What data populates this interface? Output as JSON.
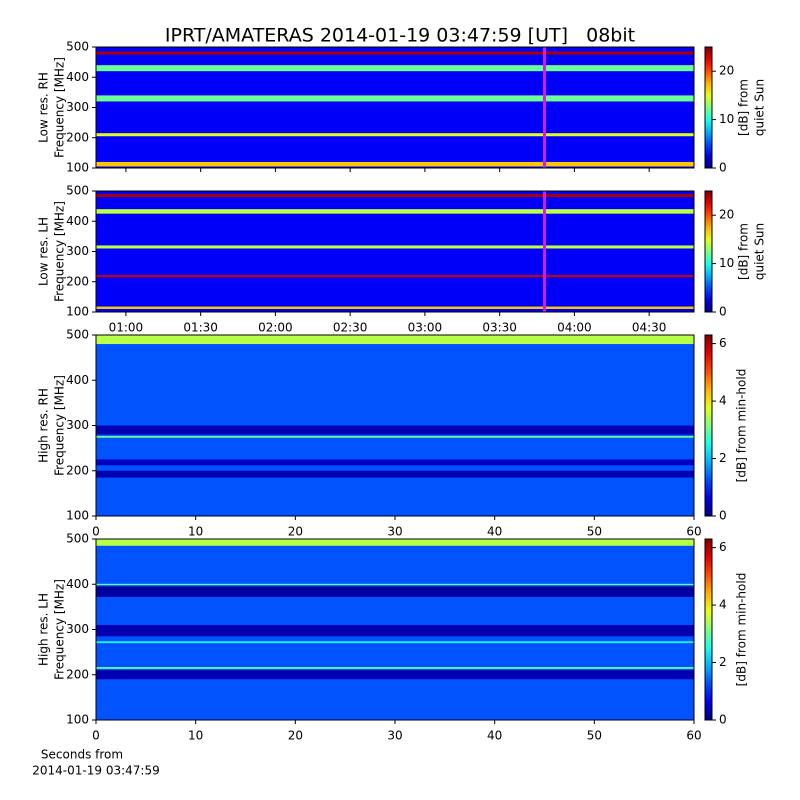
{
  "title": "IPRT/AMATERAS 2014-01-19 03:47:59 [UT]   08bit",
  "chart_data": [
    {
      "type": "spectrogram",
      "ylabel": [
        "Low res. RH",
        "Frequency [MHz]"
      ],
      "ylim": [
        100,
        500
      ],
      "yticks": [
        100,
        200,
        300,
        400,
        500
      ],
      "xlim": [
        48,
        288
      ],
      "xticks": [
        60,
        90,
        120,
        150,
        180,
        210,
        240,
        270
      ],
      "colormap": "jet",
      "clim": [
        0,
        25
      ],
      "cticks": [
        0,
        10,
        20
      ],
      "clabel": [
        "[dB] from",
        "quiet Sun"
      ],
      "background": 3,
      "bands": [
        {
          "freq": [
            475,
            485
          ],
          "value": 24
        },
        {
          "freq": [
            420,
            440
          ],
          "value": 12
        },
        {
          "freq": [
            320,
            340
          ],
          "value": 12
        },
        {
          "freq": [
            205,
            215
          ],
          "value": 15
        },
        {
          "freq": [
            105,
            120
          ],
          "value": 17
        }
      ],
      "marker": 228,
      "marker_color": "#cc22dd"
    },
    {
      "type": "spectrogram",
      "ylabel": [
        "Low res. LH",
        "Frequency [MHz]"
      ],
      "ylim": [
        100,
        500
      ],
      "yticks": [
        100,
        200,
        300,
        400,
        500
      ],
      "xlim": [
        48,
        288
      ],
      "xticks": [
        {
          "value": 60,
          "label": "01:00"
        },
        {
          "value": 90,
          "label": "01:30"
        },
        {
          "value": 120,
          "label": "02:00"
        },
        {
          "value": 150,
          "label": "02:30"
        },
        {
          "value": 180,
          "label": "03:00"
        },
        {
          "value": 210,
          "label": "03:30"
        },
        {
          "value": 240,
          "label": "04:00"
        },
        {
          "value": 270,
          "label": "04:30"
        }
      ],
      "colormap": "jet",
      "clim": [
        0,
        25
      ],
      "cticks": [
        0,
        10,
        20
      ],
      "clabel": [
        "[dB] from",
        "quiet Sun"
      ],
      "background": 3,
      "bands": [
        {
          "freq": [
            480,
            490
          ],
          "value": 24
        },
        {
          "freq": [
            425,
            440
          ],
          "value": 14
        },
        {
          "freq": [
            310,
            320
          ],
          "value": 14
        },
        {
          "freq": [
            215,
            222
          ],
          "value": 23
        },
        {
          "freq": [
            110,
            118
          ],
          "value": 17
        }
      ],
      "marker": 228,
      "marker_color": "#cc22dd"
    },
    {
      "type": "spectrogram",
      "ylabel": [
        "High res. RH",
        "Frequency [MHz]"
      ],
      "ylim": [
        100,
        500
      ],
      "yticks": [
        100,
        200,
        300,
        400,
        500
      ],
      "xlim": [
        0,
        60
      ],
      "xticks": [
        0,
        10,
        20,
        30,
        40,
        50,
        60
      ],
      "colormap": "jet",
      "clim": [
        0,
        6.3
      ],
      "cticks": [
        0,
        2,
        4,
        6
      ],
      "clabel": [
        "[dB] from min-hold"
      ],
      "background": 1.3,
      "bands": [
        {
          "freq": [
            480,
            500
          ],
          "value": 3.5
        },
        {
          "freq": [
            280,
            300
          ],
          "value": 0.3
        },
        {
          "freq": [
            273,
            277
          ],
          "value": 3
        },
        {
          "freq": [
            212,
            225
          ],
          "value": 0.4
        },
        {
          "freq": [
            185,
            200
          ],
          "value": 0.3
        }
      ]
    },
    {
      "type": "spectrogram",
      "ylabel": [
        "High res. LH",
        "Frequency [MHz]"
      ],
      "ylim": [
        100,
        500
      ],
      "yticks": [
        100,
        200,
        300,
        400,
        500
      ],
      "xlim": [
        0,
        60
      ],
      "xticks": [
        0,
        10,
        20,
        30,
        40,
        50,
        60
      ],
      "xlabel": [
        "Seconds from",
        "2014-01-19 03:47:59"
      ],
      "colormap": "jet",
      "clim": [
        0,
        6.3
      ],
      "cticks": [
        0,
        2,
        4,
        6
      ],
      "clabel": [
        "[dB] from min-hold"
      ],
      "background": 1.3,
      "bands": [
        {
          "freq": [
            485,
            500
          ],
          "value": 3.5
        },
        {
          "freq": [
            398,
            401
          ],
          "value": 3
        },
        {
          "freq": [
            372,
            395
          ],
          "value": 0.2
        },
        {
          "freq": [
            285,
            310
          ],
          "value": 0.3
        },
        {
          "freq": [
            270,
            274
          ],
          "value": 2.5
        },
        {
          "freq": [
            213,
            217
          ],
          "value": 3
        },
        {
          "freq": [
            190,
            210
          ],
          "value": 0.3
        }
      ]
    }
  ]
}
